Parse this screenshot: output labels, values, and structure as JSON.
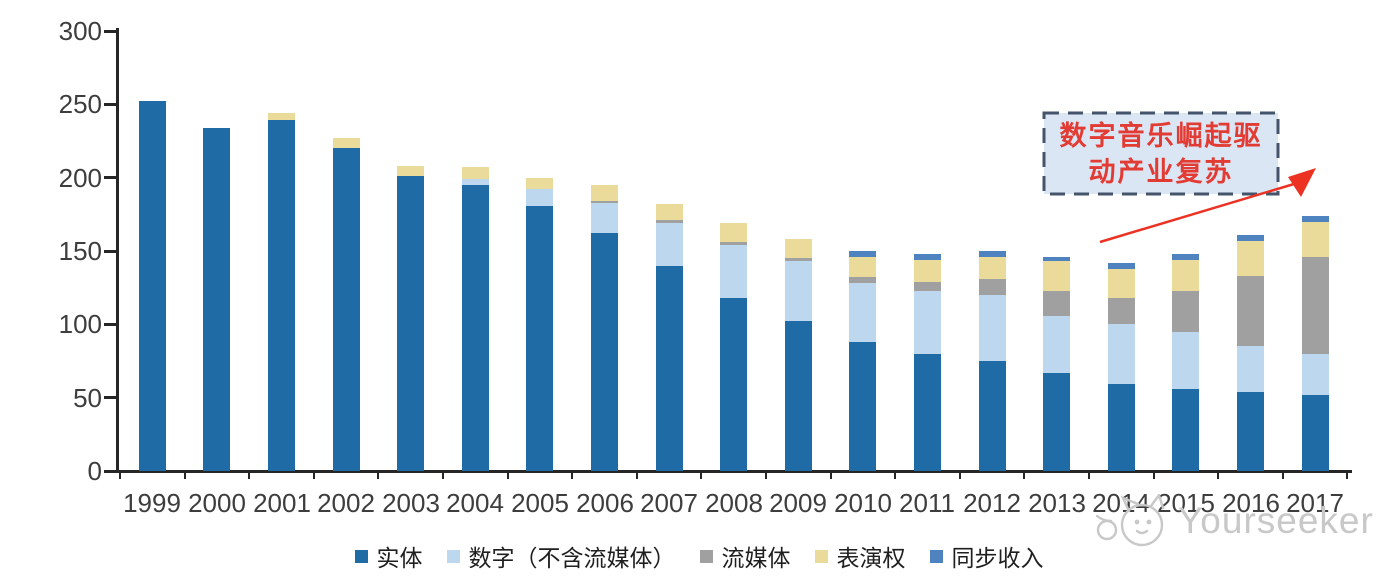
{
  "chart_data": {
    "type": "bar",
    "stacked": true,
    "categories": [
      "1999",
      "2000",
      "2001",
      "2002",
      "2003",
      "2004",
      "2005",
      "2006",
      "2007",
      "2008",
      "2009",
      "2010",
      "2011",
      "2012",
      "2013",
      "2014",
      "2015",
      "2016",
      "2017"
    ],
    "series": [
      {
        "name": "实体",
        "color": "#1F6BA6",
        "values": [
          252,
          234,
          239,
          220,
          201,
          195,
          181,
          162,
          140,
          118,
          102,
          88,
          80,
          75,
          67,
          59,
          56,
          54,
          52
        ]
      },
      {
        "name": "数字（不含流媒体）",
        "color": "#BDD7EE",
        "values": [
          0,
          0,
          0,
          0,
          0,
          4,
          11,
          21,
          29,
          36,
          41,
          40,
          43,
          45,
          39,
          41,
          39,
          31,
          28
        ]
      },
      {
        "name": "流媒体",
        "color": "#A0A0A0",
        "values": [
          0,
          0,
          0,
          0,
          0,
          0,
          0,
          1,
          2,
          2,
          2,
          4,
          6,
          11,
          17,
          18,
          28,
          48,
          66
        ]
      },
      {
        "name": "表演权",
        "color": "#EADB9B",
        "values": [
          0,
          0,
          5,
          7,
          7,
          8,
          8,
          11,
          11,
          13,
          13,
          14,
          15,
          15,
          20,
          20,
          21,
          24,
          24
        ]
      },
      {
        "name": "同步收入",
        "color": "#4E83BF",
        "values": [
          0,
          0,
          0,
          0,
          0,
          0,
          0,
          0,
          0,
          0,
          0,
          4,
          4,
          4,
          3,
          4,
          4,
          4,
          4
        ]
      }
    ],
    "title": "",
    "xlabel": "",
    "ylabel": "",
    "ylim": [
      0,
      300
    ],
    "yticks": [
      0,
      50,
      100,
      150,
      200,
      250,
      300
    ],
    "grid": false,
    "legend_position": "bottom"
  },
  "annotation": {
    "line1": "数字音乐崛起驱",
    "line2": "动产业复苏"
  },
  "watermark": {
    "text": "Yourseeker"
  },
  "colors": {
    "axis": "#262626",
    "tick_label": "#3d3d3d",
    "annotation_fill": "#DBE6F4",
    "annotation_border": "#44546A",
    "annotation_text": "#E23B33",
    "arrow_red": "#EC3323",
    "watermark_gray": "#C8C8C8"
  }
}
